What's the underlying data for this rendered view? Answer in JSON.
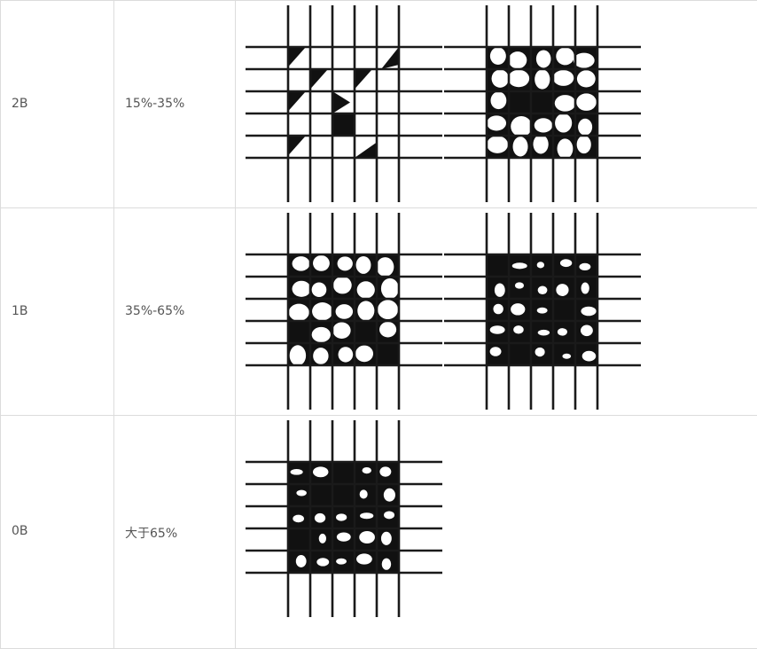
{
  "table": {
    "rows": [
      {
        "grade": "2B",
        "range": "15%-35%",
        "images": [
          {
            "name": "cross-cut-2b-example-a",
            "level": "light"
          },
          {
            "name": "cross-cut-2b-example-b",
            "level": "medium"
          }
        ]
      },
      {
        "grade": "1B",
        "range": "35%-65%",
        "images": [
          {
            "name": "cross-cut-1b-example-a",
            "level": "medium"
          },
          {
            "name": "cross-cut-1b-example-b",
            "level": "heavy"
          }
        ]
      },
      {
        "grade": "0B",
        "range": "大于65%",
        "images": [
          {
            "name": "cross-cut-0b-example-a",
            "level": "heavy"
          }
        ]
      }
    ]
  }
}
